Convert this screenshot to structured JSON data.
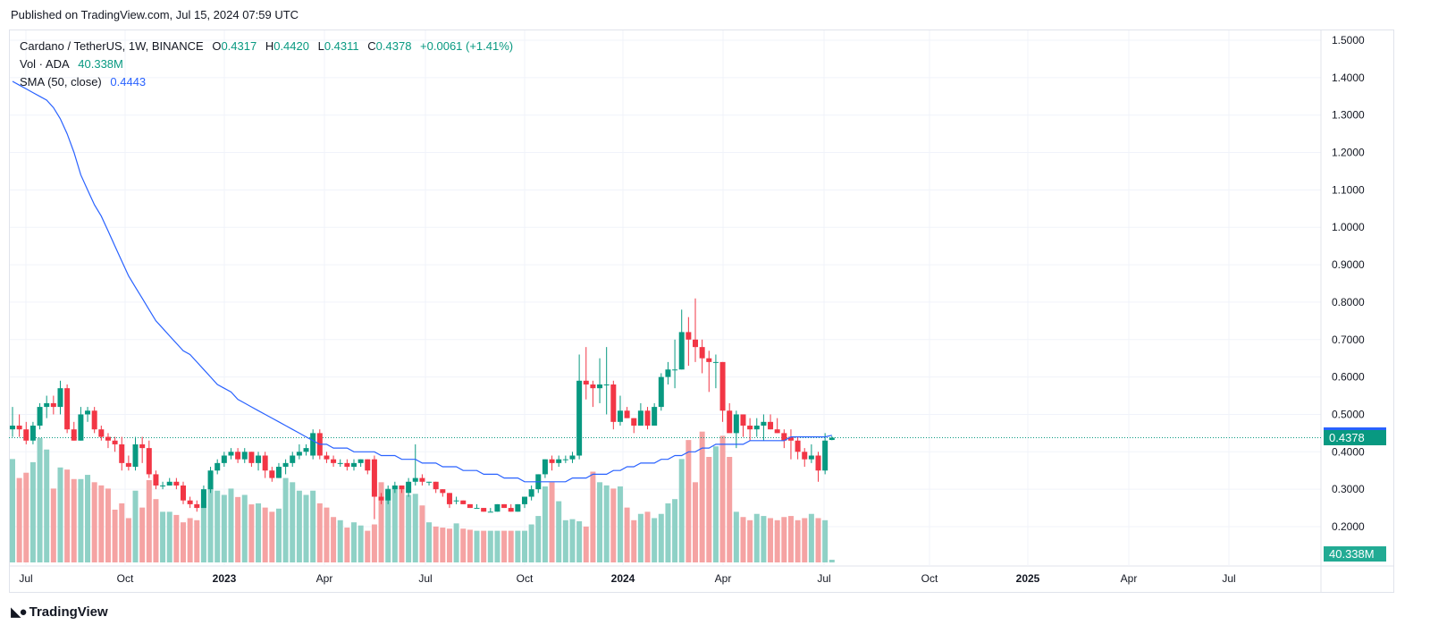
{
  "header": {
    "published": "Published on TradingView.com, Jul 15, 2024 07:59 UTC"
  },
  "legend": {
    "symbol": "Cardano / TetherUS, 1W, BINANCE",
    "open_label": "O",
    "open": "0.4317",
    "high_label": "H",
    "high": "0.4420",
    "low_label": "L",
    "low": "0.4311",
    "close_label": "C",
    "close": "0.4378",
    "change": "+0.0061 (+1.41%)",
    "vol_label": "Vol · ADA",
    "vol_value": "40.338M",
    "sma_label": "SMA (50, close)",
    "sma_value": "0.4443"
  },
  "footer": {
    "brand": "TradingView",
    "logo_icon": "tradingview-logo-icon"
  },
  "colors": {
    "up": "#089981",
    "down": "#f23645",
    "sma": "#2962ff",
    "vol_up": "#8fd1c6",
    "vol_down": "#f5a3a3",
    "grid": "#f0f3fa"
  },
  "price_tags": {
    "sma": "0.4443",
    "last": "0.4378",
    "volume": "40.338M"
  },
  "chart_data": {
    "type": "candlestick",
    "title": "Cardano / TetherUS, 1W, BINANCE",
    "y_axis_ticks": [
      "1.5000",
      "1.4000",
      "1.3000",
      "1.2000",
      "1.1000",
      "1.0000",
      "0.9000",
      "0.8000",
      "0.7000",
      "0.6000",
      "0.5000",
      "0.4000",
      "0.3000",
      "0.2000"
    ],
    "ylim": [
      0.1,
      1.5
    ],
    "x_axis_labels": [
      "Jul",
      "Oct",
      "2023",
      "Apr",
      "Jul",
      "Oct",
      "2024",
      "Apr",
      "Jul",
      "Oct",
      "2025",
      "Apr",
      "Jul"
    ],
    "x_axis_bold": [
      "2023",
      "2024",
      "2025"
    ],
    "last_close": 0.4378,
    "sma_last": 0.4443,
    "volume_last": "40.338M",
    "ohlc": [
      [
        0.46,
        0.52,
        0.44,
        0.47
      ],
      [
        0.47,
        0.5,
        0.44,
        0.46
      ],
      [
        0.46,
        0.48,
        0.42,
        0.43
      ],
      [
        0.43,
        0.48,
        0.42,
        0.47
      ],
      [
        0.47,
        0.53,
        0.46,
        0.52
      ],
      [
        0.52,
        0.55,
        0.49,
        0.53
      ],
      [
        0.53,
        0.55,
        0.5,
        0.52
      ],
      [
        0.52,
        0.59,
        0.5,
        0.57
      ],
      [
        0.57,
        0.58,
        0.45,
        0.46
      ],
      [
        0.46,
        0.48,
        0.43,
        0.43
      ],
      [
        0.43,
        0.52,
        0.43,
        0.5
      ],
      [
        0.5,
        0.52,
        0.48,
        0.51
      ],
      [
        0.51,
        0.52,
        0.45,
        0.46
      ],
      [
        0.46,
        0.47,
        0.43,
        0.44
      ],
      [
        0.44,
        0.45,
        0.41,
        0.43
      ],
      [
        0.43,
        0.44,
        0.4,
        0.42
      ],
      [
        0.42,
        0.44,
        0.35,
        0.37
      ],
      [
        0.37,
        0.39,
        0.35,
        0.36
      ],
      [
        0.36,
        0.44,
        0.35,
        0.42
      ],
      [
        0.42,
        0.44,
        0.37,
        0.41
      ],
      [
        0.41,
        0.43,
        0.33,
        0.34
      ],
      [
        0.34,
        0.35,
        0.3,
        0.31
      ],
      [
        0.31,
        0.32,
        0.3,
        0.31
      ],
      [
        0.31,
        0.33,
        0.31,
        0.32
      ],
      [
        0.32,
        0.33,
        0.3,
        0.31
      ],
      [
        0.31,
        0.32,
        0.26,
        0.27
      ],
      [
        0.27,
        0.28,
        0.25,
        0.26
      ],
      [
        0.26,
        0.27,
        0.24,
        0.25
      ],
      [
        0.25,
        0.31,
        0.25,
        0.3
      ],
      [
        0.3,
        0.36,
        0.29,
        0.35
      ],
      [
        0.35,
        0.38,
        0.34,
        0.37
      ],
      [
        0.37,
        0.4,
        0.36,
        0.39
      ],
      [
        0.39,
        0.41,
        0.38,
        0.4
      ],
      [
        0.4,
        0.41,
        0.37,
        0.38
      ],
      [
        0.38,
        0.41,
        0.37,
        0.4
      ],
      [
        0.4,
        0.4,
        0.36,
        0.37
      ],
      [
        0.37,
        0.4,
        0.35,
        0.39
      ],
      [
        0.39,
        0.4,
        0.33,
        0.35
      ],
      [
        0.35,
        0.36,
        0.32,
        0.33
      ],
      [
        0.33,
        0.37,
        0.33,
        0.36
      ],
      [
        0.36,
        0.38,
        0.34,
        0.37
      ],
      [
        0.37,
        0.4,
        0.36,
        0.39
      ],
      [
        0.39,
        0.42,
        0.38,
        0.4
      ],
      [
        0.4,
        0.42,
        0.39,
        0.41
      ],
      [
        0.39,
        0.46,
        0.38,
        0.45
      ],
      [
        0.45,
        0.46,
        0.38,
        0.39
      ],
      [
        0.39,
        0.4,
        0.37,
        0.38
      ],
      [
        0.38,
        0.39,
        0.36,
        0.37
      ],
      [
        0.37,
        0.38,
        0.36,
        0.37
      ],
      [
        0.37,
        0.38,
        0.35,
        0.36
      ],
      [
        0.36,
        0.38,
        0.35,
        0.37
      ],
      [
        0.37,
        0.38,
        0.36,
        0.38
      ],
      [
        0.38,
        0.38,
        0.34,
        0.35
      ],
      [
        0.38,
        0.39,
        0.22,
        0.28
      ],
      [
        0.28,
        0.29,
        0.26,
        0.27
      ],
      [
        0.27,
        0.31,
        0.26,
        0.3
      ],
      [
        0.3,
        0.32,
        0.29,
        0.31
      ],
      [
        0.31,
        0.31,
        0.29,
        0.3
      ],
      [
        0.29,
        0.33,
        0.28,
        0.32
      ],
      [
        0.32,
        0.42,
        0.31,
        0.33
      ],
      [
        0.33,
        0.34,
        0.31,
        0.32
      ],
      [
        0.32,
        0.32,
        0.31,
        0.32
      ],
      [
        0.32,
        0.32,
        0.29,
        0.3
      ],
      [
        0.3,
        0.3,
        0.28,
        0.29
      ],
      [
        0.29,
        0.29,
        0.25,
        0.26
      ],
      [
        0.27,
        0.28,
        0.26,
        0.27
      ],
      [
        0.27,
        0.27,
        0.26,
        0.26
      ],
      [
        0.26,
        0.26,
        0.25,
        0.25
      ],
      [
        0.25,
        0.26,
        0.25,
        0.25
      ],
      [
        0.25,
        0.25,
        0.24,
        0.24
      ],
      [
        0.24,
        0.25,
        0.24,
        0.24
      ],
      [
        0.24,
        0.26,
        0.24,
        0.26
      ],
      [
        0.26,
        0.26,
        0.25,
        0.25
      ],
      [
        0.25,
        0.26,
        0.24,
        0.24
      ],
      [
        0.24,
        0.26,
        0.24,
        0.26
      ],
      [
        0.26,
        0.28,
        0.25,
        0.28
      ],
      [
        0.28,
        0.31,
        0.27,
        0.3
      ],
      [
        0.3,
        0.34,
        0.29,
        0.34
      ],
      [
        0.34,
        0.38,
        0.33,
        0.38
      ],
      [
        0.38,
        0.39,
        0.35,
        0.37
      ],
      [
        0.37,
        0.39,
        0.36,
        0.38
      ],
      [
        0.38,
        0.39,
        0.37,
        0.38
      ],
      [
        0.38,
        0.4,
        0.37,
        0.39
      ],
      [
        0.39,
        0.66,
        0.38,
        0.59
      ],
      [
        0.59,
        0.68,
        0.54,
        0.58
      ],
      [
        0.58,
        0.59,
        0.52,
        0.57
      ],
      [
        0.57,
        0.65,
        0.53,
        0.58
      ],
      [
        0.58,
        0.68,
        0.5,
        0.58
      ],
      [
        0.58,
        0.59,
        0.46,
        0.48
      ],
      [
        0.48,
        0.55,
        0.47,
        0.51
      ],
      [
        0.51,
        0.52,
        0.49,
        0.49
      ],
      [
        0.49,
        0.49,
        0.45,
        0.47
      ],
      [
        0.47,
        0.53,
        0.47,
        0.51
      ],
      [
        0.51,
        0.52,
        0.46,
        0.47
      ],
      [
        0.47,
        0.53,
        0.47,
        0.52
      ],
      [
        0.52,
        0.61,
        0.51,
        0.6
      ],
      [
        0.6,
        0.64,
        0.58,
        0.62
      ],
      [
        0.62,
        0.7,
        0.57,
        0.62
      ],
      [
        0.62,
        0.78,
        0.62,
        0.72
      ],
      [
        0.72,
        0.76,
        0.63,
        0.7
      ],
      [
        0.7,
        0.81,
        0.64,
        0.68
      ],
      [
        0.68,
        0.7,
        0.61,
        0.65
      ],
      [
        0.65,
        0.67,
        0.56,
        0.64
      ],
      [
        0.64,
        0.66,
        0.57,
        0.64
      ],
      [
        0.64,
        0.64,
        0.48,
        0.51
      ],
      [
        0.51,
        0.53,
        0.46,
        0.45
      ],
      [
        0.45,
        0.51,
        0.41,
        0.5
      ],
      [
        0.5,
        0.5,
        0.44,
        0.47
      ],
      [
        0.47,
        0.49,
        0.43,
        0.46
      ],
      [
        0.46,
        0.49,
        0.44,
        0.47
      ],
      [
        0.47,
        0.5,
        0.43,
        0.48
      ],
      [
        0.48,
        0.5,
        0.46,
        0.46
      ],
      [
        0.46,
        0.49,
        0.45,
        0.45
      ],
      [
        0.45,
        0.46,
        0.41,
        0.43
      ],
      [
        0.44,
        0.46,
        0.38,
        0.43
      ],
      [
        0.43,
        0.44,
        0.38,
        0.4
      ],
      [
        0.4,
        0.41,
        0.36,
        0.38
      ],
      [
        0.38,
        0.42,
        0.37,
        0.39
      ],
      [
        0.39,
        0.4,
        0.32,
        0.35
      ],
      [
        0.35,
        0.45,
        0.34,
        0.43
      ],
      [
        0.4317,
        0.442,
        0.4311,
        0.4378
      ]
    ],
    "volume_millions": [
      980,
      800,
      850,
      950,
      1180,
      1070,
      700,
      900,
      880,
      790,
      790,
      830,
      760,
      730,
      700,
      500,
      560,
      420,
      680,
      520,
      780,
      600,
      480,
      480,
      450,
      380,
      420,
      400,
      560,
      700,
      680,
      640,
      700,
      620,
      640,
      550,
      560,
      520,
      480,
      510,
      800,
      760,
      680,
      640,
      680,
      560,
      520,
      430,
      400,
      330,
      380,
      350,
      300,
      360,
      760,
      700,
      720,
      700,
      640,
      650,
      540,
      380,
      340,
      330,
      320,
      370,
      320,
      310,
      300,
      300,
      300,
      300,
      300,
      300,
      300,
      300,
      360,
      440,
      720,
      760,
      580,
      400,
      410,
      390,
      340,
      860,
      760,
      730,
      700,
      720,
      520,
      400,
      460,
      480,
      420,
      460,
      560,
      600,
      980,
      1160,
      760,
      1240,
      1000,
      1100,
      1200,
      1000,
      480,
      430,
      400,
      460,
      440,
      420,
      400,
      430,
      440,
      400,
      420,
      460,
      420,
      400
    ],
    "sma_50": [
      1.39,
      1.38,
      1.37,
      1.36,
      1.35,
      1.34,
      1.32,
      1.29,
      1.25,
      1.2,
      1.14,
      1.1,
      1.06,
      1.03,
      0.99,
      0.95,
      0.91,
      0.87,
      0.84,
      0.81,
      0.78,
      0.75,
      0.73,
      0.71,
      0.69,
      0.67,
      0.66,
      0.64,
      0.62,
      0.6,
      0.58,
      0.57,
      0.56,
      0.54,
      0.53,
      0.52,
      0.51,
      0.5,
      0.49,
      0.48,
      0.47,
      0.46,
      0.45,
      0.44,
      0.43,
      0.42,
      0.42,
      0.41,
      0.41,
      0.41,
      0.4,
      0.4,
      0.4,
      0.4,
      0.39,
      0.39,
      0.39,
      0.38,
      0.38,
      0.38,
      0.37,
      0.37,
      0.37,
      0.36,
      0.36,
      0.36,
      0.35,
      0.35,
      0.35,
      0.34,
      0.34,
      0.34,
      0.33,
      0.33,
      0.33,
      0.32,
      0.32,
      0.32,
      0.32,
      0.32,
      0.32,
      0.32,
      0.33,
      0.33,
      0.33,
      0.34,
      0.34,
      0.34,
      0.35,
      0.35,
      0.36,
      0.36,
      0.37,
      0.37,
      0.37,
      0.38,
      0.38,
      0.39,
      0.39,
      0.4,
      0.4,
      0.41,
      0.41,
      0.42,
      0.42,
      0.42,
      0.42,
      0.42,
      0.43,
      0.43,
      0.43,
      0.43,
      0.43,
      0.43,
      0.44,
      0.44,
      0.44,
      0.44,
      0.44,
      0.44,
      0.4443
    ]
  }
}
